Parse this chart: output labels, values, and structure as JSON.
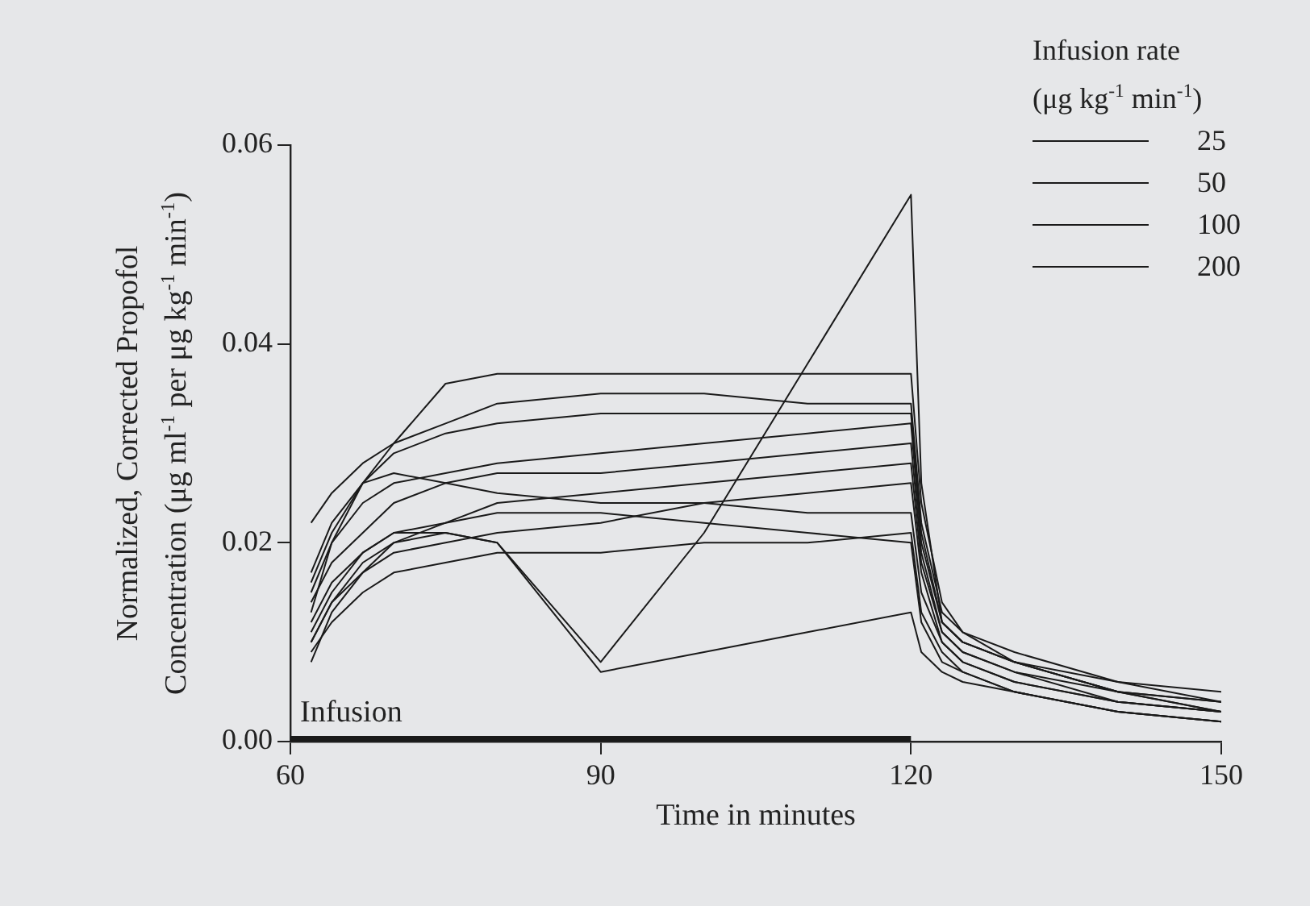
{
  "chart_data": {
    "type": "line",
    "xlabel": "Time in minutes",
    "ylabel": "Normalized, Corrected Propofol\nConcentration (μg ml$^{-1}$ per μg kg$^{-1}$ min$^{-1}$)",
    "legend_title": "Infusion rate\n(μg kg$^{-1}$ min$^{-1}$)",
    "legend": "top right",
    "x": [
      62,
      64,
      67,
      70,
      75,
      80,
      90,
      100,
      110,
      120,
      121,
      123,
      125,
      130,
      140,
      150
    ],
    "xlim": [
      60,
      150
    ],
    "xticks": [
      60,
      90,
      120,
      150
    ],
    "ylim": [
      0,
      0.06
    ],
    "yticks": [
      {
        "value": 0,
        "label": "0.00"
      },
      {
        "value": 0.02,
        "label": "0.02"
      },
      {
        "value": 0.04,
        "label": "0.04"
      },
      {
        "value": 0.06,
        "label": "0.06"
      }
    ],
    "series": [
      {
        "name": "25",
        "color": "#1a1a1a",
        "values": [
          0.009,
          0.012,
          0.015,
          0.017,
          0.018,
          0.019,
          0.019,
          0.02,
          0.02,
          0.021,
          0.013,
          0.009,
          0.007,
          0.005,
          0.003,
          0.002
        ]
      },
      {
        "name": "50",
        "color": "#1a1a1a",
        "values": [
          0.012,
          0.016,
          0.019,
          0.021,
          0.022,
          0.024,
          0.025,
          0.026,
          0.027,
          0.028,
          0.018,
          0.011,
          0.009,
          0.007,
          0.004,
          0.003
        ]
      },
      {
        "name": "100",
        "color": "#1a1a1a",
        "values": [
          0.015,
          0.02,
          0.024,
          0.026,
          0.027,
          0.028,
          0.029,
          0.03,
          0.031,
          0.032,
          0.02,
          0.012,
          0.01,
          0.008,
          0.005,
          0.004
        ]
      },
      {
        "name": "200",
        "color": "#1a1a1a",
        "values": [
          0.022,
          0.025,
          0.028,
          0.03,
          0.032,
          0.034,
          0.035,
          0.035,
          0.034,
          0.034,
          0.022,
          0.013,
          0.011,
          0.008,
          0.006,
          0.004
        ]
      },
      {
        "color": "#1a1a1a",
        "values": [
          0.013,
          0.02,
          0.026,
          0.03,
          0.036,
          0.037,
          0.037,
          0.037,
          0.037,
          0.037,
          0.024,
          0.014,
          0.011,
          0.009,
          0.006,
          0.005
        ]
      },
      {
        "color": "#1a1a1a",
        "values": [
          0.01,
          0.014,
          0.018,
          0.02,
          0.021,
          0.02,
          0.008,
          0.021,
          0.038,
          0.055,
          0.026,
          0.012,
          0.01,
          0.008,
          0.005,
          0.003
        ]
      },
      {
        "color": "#1a1a1a",
        "values": [
          0.011,
          0.015,
          0.019,
          0.021,
          0.021,
          0.02,
          0.007,
          0.009,
          0.011,
          0.013,
          0.009,
          0.007,
          0.006,
          0.005,
          0.003,
          0.002
        ]
      },
      {
        "color": "#1a1a1a",
        "values": [
          0.008,
          0.013,
          0.017,
          0.02,
          0.022,
          0.023,
          0.023,
          0.022,
          0.021,
          0.02,
          0.012,
          0.008,
          0.007,
          0.005,
          0.003,
          0.002
        ]
      },
      {
        "color": "#1a1a1a",
        "values": [
          0.014,
          0.018,
          0.021,
          0.024,
          0.026,
          0.027,
          0.027,
          0.028,
          0.029,
          0.03,
          0.019,
          0.011,
          0.009,
          0.007,
          0.005,
          0.003
        ]
      },
      {
        "color": "#1a1a1a",
        "values": [
          0.017,
          0.022,
          0.026,
          0.027,
          0.026,
          0.025,
          0.024,
          0.024,
          0.023,
          0.023,
          0.015,
          0.01,
          0.008,
          0.006,
          0.004,
          0.003
        ]
      },
      {
        "color": "#1a1a1a",
        "values": [
          0.01,
          0.014,
          0.017,
          0.019,
          0.02,
          0.021,
          0.022,
          0.024,
          0.025,
          0.026,
          0.017,
          0.01,
          0.008,
          0.006,
          0.004,
          0.003
        ]
      },
      {
        "color": "#1a1a1a",
        "values": [
          0.016,
          0.021,
          0.026,
          0.029,
          0.031,
          0.032,
          0.033,
          0.033,
          0.033,
          0.033,
          0.021,
          0.012,
          0.01,
          0.008,
          0.005,
          0.004
        ]
      },
      {
        "type": "step",
        "name": "Infusion",
        "color": "#1a1a1a",
        "x": [
          60,
          120
        ],
        "values": [
          0,
          0
        ]
      }
    ]
  }
}
